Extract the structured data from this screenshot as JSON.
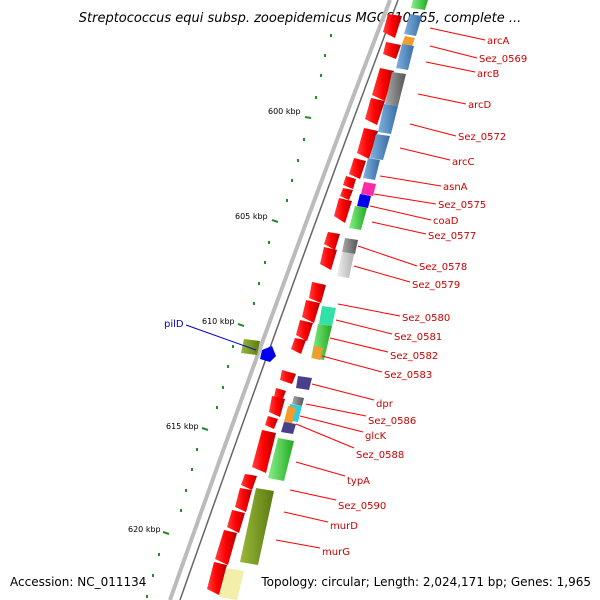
{
  "title": "Streptococcus equi subsp. zooepidemicus MGCS10565, complete ...",
  "footer": {
    "accession": "Accession: NC_011134",
    "topology": "Topology: circular; Length: 2,024,171 bp; Genes: 1,965"
  },
  "scale_labels": [
    "600 kbp",
    "605 kbp",
    "610 kbp",
    "615 kbp",
    "620 kbp"
  ],
  "gene_labels": [
    "arcA",
    "Sez_0569",
    "arcB",
    "arcD",
    "Sez_0572",
    "arcC",
    "asnA",
    "Sez_0575",
    "coaD",
    "Sez_0577",
    "Sez_0578",
    "Sez_0579",
    "Sez_0580",
    "Sez_0581",
    "Sez_0582",
    "Sez_0583",
    "dpr",
    "Sez_0586",
    "glcK",
    "Sez_0588",
    "typA",
    "Sez_0590",
    "murD",
    "murG"
  ],
  "reverse_strand_label": "pilD",
  "colors": {
    "gene_arrow": "#ff0000",
    "label_line": "#ff0000",
    "pilD": "#0000ff",
    "tick": "#2a8a2a",
    "backbone": "#888888"
  }
}
